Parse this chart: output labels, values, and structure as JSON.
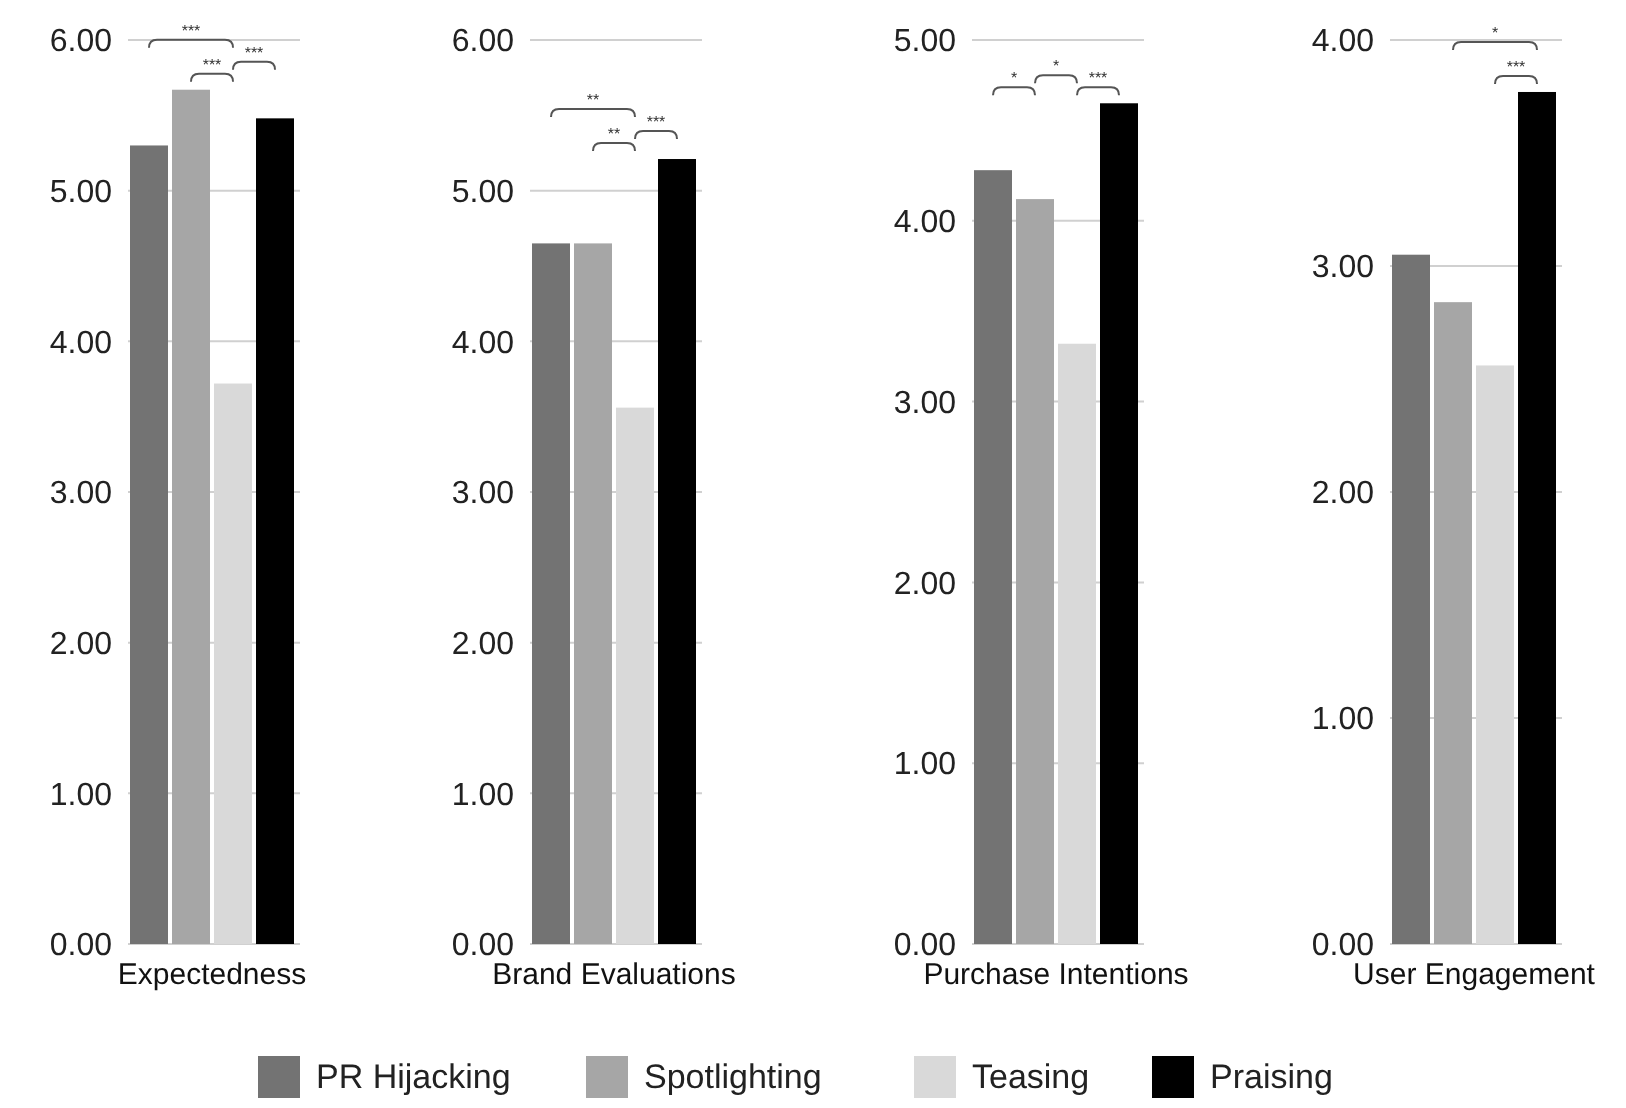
{
  "chart_data": [
    {
      "type": "bar",
      "categories": [
        "Expectedness"
      ],
      "series": [
        {
          "name": "PR Hijacking",
          "color": "#737373",
          "values": [
            5.3
          ]
        },
        {
          "name": "Spotlighting",
          "color": "#a6a6a6",
          "values": [
            5.67
          ]
        },
        {
          "name": "Teasing",
          "color": "#d9d9d9",
          "values": [
            3.72
          ]
        },
        {
          "name": "Praising",
          "color": "#000000",
          "values": [
            5.48
          ]
        }
      ],
      "ylim": [
        0,
        6
      ],
      "yticks": [
        {
          "value": 0,
          "label": "0.00"
        },
        {
          "value": 1,
          "label": "1.00"
        },
        {
          "value": 2,
          "label": "2.00"
        },
        {
          "value": 3,
          "label": "3.00"
        },
        {
          "value": 4,
          "label": "4.00"
        },
        {
          "value": 5,
          "label": "5.00"
        },
        {
          "value": 6,
          "label": "6.00"
        }
      ],
      "grid": "y",
      "legend": "bottom",
      "annotations": [
        "***",
        "***",
        "***"
      ]
    },
    {
      "type": "bar",
      "categories": [
        "Brand Evaluations"
      ],
      "series": [
        {
          "name": "PR Hijacking",
          "color": "#737373",
          "values": [
            4.65
          ]
        },
        {
          "name": "Spotlighting",
          "color": "#a6a6a6",
          "values": [
            4.65
          ]
        },
        {
          "name": "Teasing",
          "color": "#d9d9d9",
          "values": [
            3.56
          ]
        },
        {
          "name": "Praising",
          "color": "#000000",
          "values": [
            5.21
          ]
        }
      ],
      "ylim": [
        0,
        6
      ],
      "yticks": [
        {
          "value": 0,
          "label": "0.00"
        },
        {
          "value": 1,
          "label": "1.00"
        },
        {
          "value": 2,
          "label": "2.00"
        },
        {
          "value": 3,
          "label": "3.00"
        },
        {
          "value": 4,
          "label": "4.00"
        },
        {
          "value": 5,
          "label": "5.00"
        },
        {
          "value": 6,
          "label": "6.00"
        }
      ],
      "grid": "y",
      "annotations": [
        "**",
        "**",
        "***"
      ]
    },
    {
      "type": "bar",
      "categories": [
        "Purchase Intentions"
      ],
      "series": [
        {
          "name": "PR Hijacking",
          "color": "#737373",
          "values": [
            4.28
          ]
        },
        {
          "name": "Spotlighting",
          "color": "#a6a6a6",
          "values": [
            4.12
          ]
        },
        {
          "name": "Teasing",
          "color": "#d9d9d9",
          "values": [
            3.32
          ]
        },
        {
          "name": "Praising",
          "color": "#000000",
          "values": [
            4.65
          ]
        }
      ],
      "ylim": [
        0,
        5
      ],
      "yticks": [
        {
          "value": 0,
          "label": "0.00"
        },
        {
          "value": 1,
          "label": "1.00"
        },
        {
          "value": 2,
          "label": "2.00"
        },
        {
          "value": 3,
          "label": "3.00"
        },
        {
          "value": 4,
          "label": "4.00"
        },
        {
          "value": 5,
          "label": "5.00"
        }
      ],
      "grid": "y",
      "annotations": [
        "*",
        "*",
        "***"
      ]
    },
    {
      "type": "bar",
      "categories": [
        "User Engagement"
      ],
      "series": [
        {
          "name": "PR Hijacking",
          "color": "#737373",
          "values": [
            3.05
          ]
        },
        {
          "name": "Spotlighting",
          "color": "#a6a6a6",
          "values": [
            2.84
          ]
        },
        {
          "name": "Teasing",
          "color": "#d9d9d9",
          "values": [
            2.56
          ]
        },
        {
          "name": "Praising",
          "color": "#000000",
          "values": [
            3.77
          ]
        }
      ],
      "ylim": [
        0,
        4
      ],
      "yticks": [
        {
          "value": 0,
          "label": "0.00"
        },
        {
          "value": 1,
          "label": "1.00"
        },
        {
          "value": 2,
          "label": "2.00"
        },
        {
          "value": 3,
          "label": "3.00"
        },
        {
          "value": 4,
          "label": "4.00"
        }
      ],
      "grid": "y",
      "annotations": [
        "*",
        "***"
      ]
    }
  ]
}
